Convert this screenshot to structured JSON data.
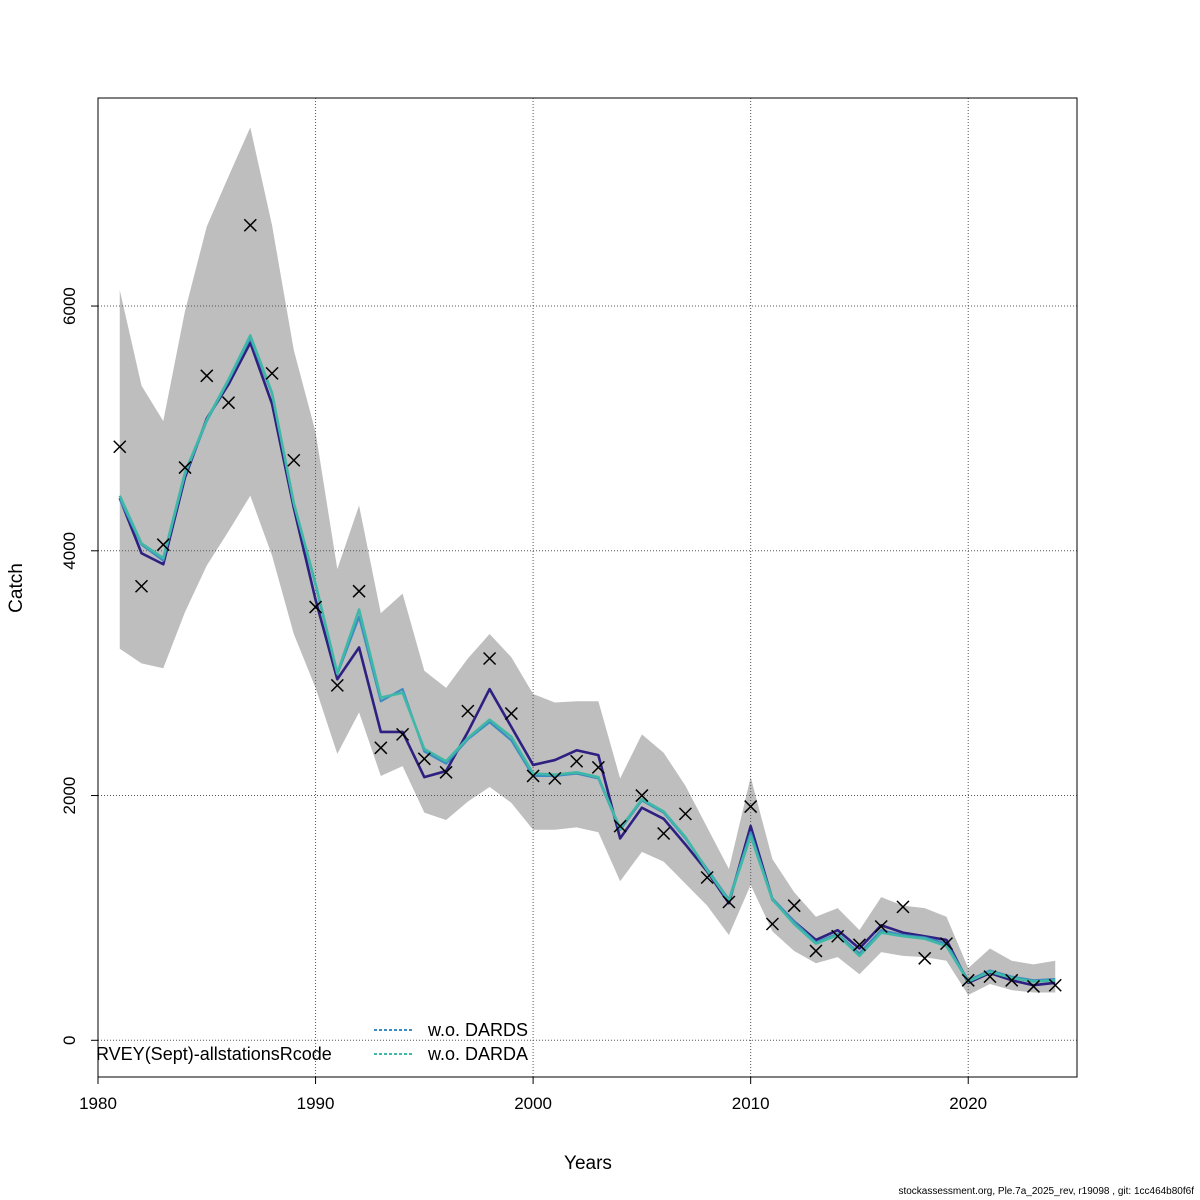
{
  "chart_data": {
    "type": "line",
    "xlabel": "Years",
    "ylabel": "Catch",
    "xlim": [
      1980,
      2025
    ],
    "ylim": [
      -300,
      7700
    ],
    "x_ticks": [
      1980,
      1990,
      2000,
      2010,
      2020
    ],
    "y_ticks": [
      0,
      2000,
      4000,
      6000
    ],
    "grid": true,
    "legend_position": "bottom-left",
    "x": [
      1981,
      1982,
      1983,
      1984,
      1985,
      1986,
      1987,
      1988,
      1989,
      1990,
      1991,
      1992,
      1993,
      1994,
      1995,
      1996,
      1997,
      1998,
      1999,
      2000,
      2001,
      2002,
      2003,
      2004,
      2005,
      2006,
      2007,
      2008,
      2009,
      2010,
      2011,
      2012,
      2013,
      2014,
      2015,
      2016,
      2017,
      2018,
      2019,
      2020,
      2021,
      2022,
      2023,
      2024
    ],
    "series": [
      {
        "name": "RVEY(Sept)-allstationsRcode",
        "color": "#2d2080",
        "values": [
          4430,
          3980,
          3890,
          4600,
          5080,
          5360,
          5700,
          5200,
          4350,
          3600,
          2950,
          3210,
          2520,
          2520,
          2150,
          2200,
          2520,
          2870,
          2560,
          2250,
          2290,
          2370,
          2330,
          1650,
          1900,
          1810,
          1600,
          1380,
          1120,
          1750,
          1150,
          970,
          820,
          900,
          750,
          940,
          880,
          850,
          820,
          470,
          550,
          490,
          450,
          470
        ]
      },
      {
        "name": "w.o. DARDS",
        "color": "#3d8bc0",
        "values": [
          4420,
          4050,
          3920,
          4620,
          5060,
          5390,
          5740,
          5280,
          4380,
          3720,
          2990,
          3460,
          2770,
          2870,
          2360,
          2260,
          2460,
          2600,
          2450,
          2160,
          2160,
          2180,
          2140,
          1720,
          1960,
          1860,
          1650,
          1400,
          1150,
          1700,
          1160,
          970,
          800,
          870,
          710,
          900,
          860,
          840,
          790,
          490,
          570,
          520,
          490,
          500
        ]
      },
      {
        "name": "w.o. DARDA",
        "color": "#40b8a8",
        "values": [
          4450,
          4060,
          3940,
          4640,
          5070,
          5400,
          5760,
          5290,
          4390,
          3730,
          3000,
          3520,
          2800,
          2840,
          2380,
          2280,
          2470,
          2620,
          2480,
          2180,
          2170,
          2190,
          2150,
          1730,
          1970,
          1870,
          1660,
          1390,
          1140,
          1670,
          1150,
          950,
          790,
          860,
          690,
          880,
          850,
          830,
          770,
          480,
          560,
          510,
          480,
          490
        ]
      }
    ],
    "confidence_band": {
      "color": "#bebebe",
      "upper": [
        6130,
        5350,
        5060,
        5960,
        6650,
        7060,
        7460,
        6660,
        5640,
        4970,
        3850,
        4370,
        3490,
        3650,
        3020,
        2880,
        3120,
        3320,
        3130,
        2830,
        2760,
        2770,
        2770,
        2140,
        2500,
        2350,
        2080,
        1740,
        1400,
        2150,
        1480,
        1210,
        1010,
        1080,
        900,
        1170,
        1100,
        1080,
        1010,
        590,
        750,
        650,
        620,
        650
      ],
      "lower": [
        3200,
        3080,
        3040,
        3500,
        3880,
        4160,
        4450,
        3960,
        3320,
        2880,
        2340,
        2680,
        2160,
        2240,
        1860,
        1800,
        1950,
        2070,
        1940,
        1720,
        1720,
        1740,
        1700,
        1300,
        1540,
        1460,
        1280,
        1100,
        860,
        1270,
        890,
        730,
        630,
        680,
        540,
        720,
        690,
        680,
        650,
        370,
        460,
        410,
        390,
        390
      ]
    },
    "observations": {
      "marker": "x",
      "values": [
        4850,
        3710,
        4050,
        4680,
        5430,
        5210,
        6660,
        5450,
        4740,
        3540,
        2900,
        3670,
        2390,
        2500,
        2300,
        2190,
        2690,
        3120,
        2670,
        2160,
        2140,
        2280,
        2230,
        1750,
        2000,
        1690,
        1850,
        1330,
        1130,
        1910,
        950,
        1100,
        730,
        850,
        780,
        930,
        1090,
        670,
        790,
        490,
        520,
        490,
        440,
        450
      ]
    },
    "legend": [
      {
        "label": "RVEY(Sept)-allstationsRcode"
      },
      {
        "label": "w.o. DARDS"
      },
      {
        "label": "w.o. DARDA"
      }
    ]
  },
  "footer_text": "stockassessment.org, Ple.7a_2025_rev, r19098 , git: 1cc464b80f6f"
}
